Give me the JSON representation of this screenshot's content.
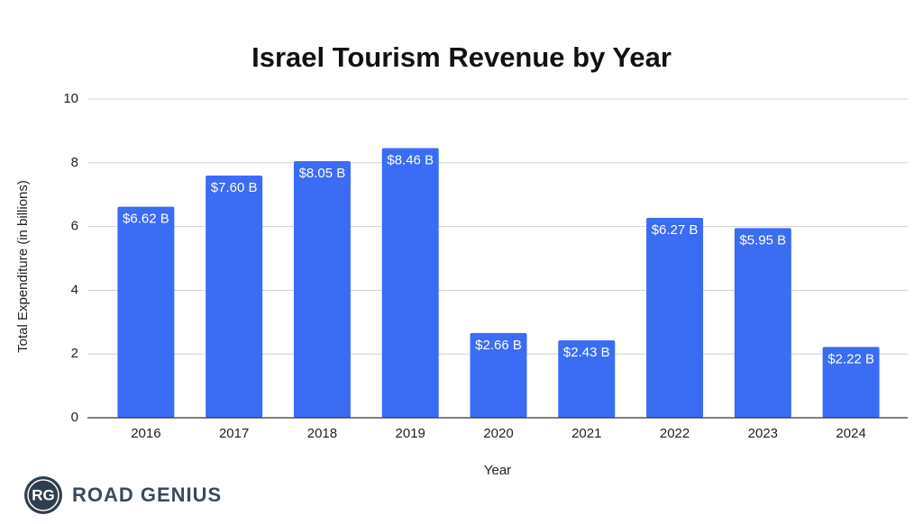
{
  "chart_data": {
    "type": "bar",
    "title": "Israel Tourism Revenue by Year",
    "x_label": "Year",
    "y_label": "Total Expenditure (in billions)",
    "categories": [
      "2016",
      "2017",
      "2018",
      "2019",
      "2020",
      "2021",
      "2022",
      "2023",
      "2024"
    ],
    "values": [
      6.62,
      7.6,
      8.05,
      8.46,
      2.66,
      2.43,
      6.27,
      5.95,
      2.22
    ],
    "value_labels": [
      "$6.62 B",
      "$7.60 B",
      "$8.05 B",
      "$8.46 B",
      "$2.66 B",
      "$2.43 B",
      "$6.27 B",
      "$5.95 B",
      "$2.22 B"
    ],
    "color": "#3b6cf4",
    "ylim": [
      0,
      10
    ],
    "yticks": [
      0,
      2,
      4,
      6,
      8,
      10
    ],
    "grid": true
  },
  "branding": {
    "logo": "RG",
    "name": "ROAD GENIUS"
  }
}
